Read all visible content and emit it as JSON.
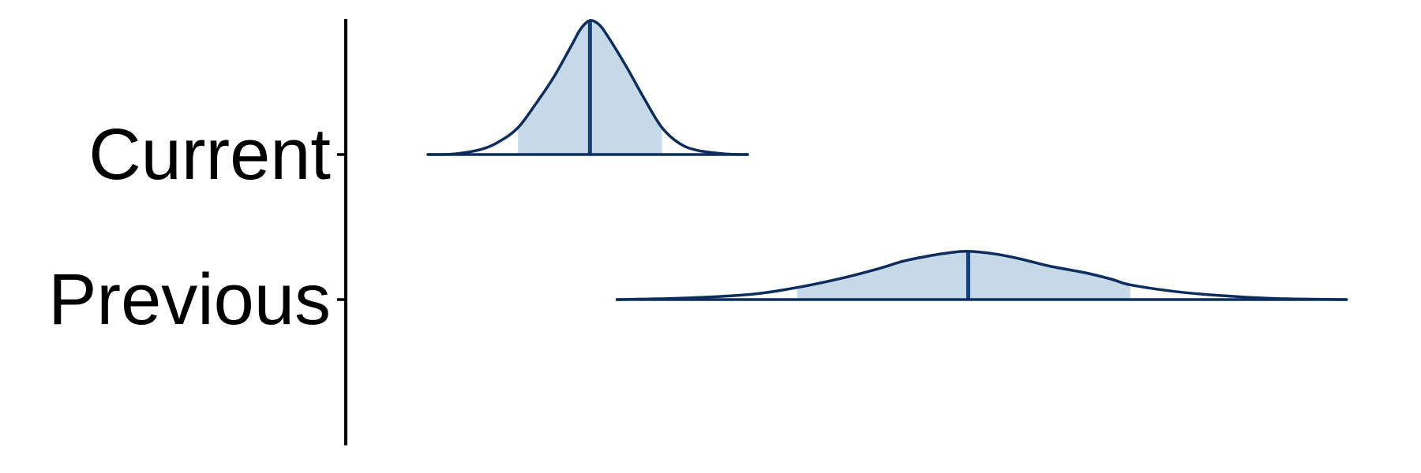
{
  "chart_data": {
    "type": "area",
    "subtype": "ridgeline",
    "title": "",
    "xlabel": "",
    "ylabel": "",
    "xlim": [
      -1.8,
      6.3
    ],
    "grid": false,
    "legend": "none",
    "categories": [
      "Current",
      "Previous"
    ],
    "series": [
      {
        "category": "Current",
        "median": 0.0,
        "interval": [
          -0.8,
          0.8
        ],
        "range": [
          -1.8,
          1.75
        ],
        "density": [
          [
            -1.8,
            0.0
          ],
          [
            -1.5,
            0.005
          ],
          [
            -1.2,
            0.04
          ],
          [
            -1.0,
            0.1
          ],
          [
            -0.8,
            0.2
          ],
          [
            -0.6,
            0.38
          ],
          [
            -0.4,
            0.58
          ],
          [
            -0.2,
            0.82
          ],
          [
            -0.1,
            0.94
          ],
          [
            0.0,
            1.0
          ],
          [
            0.1,
            0.97
          ],
          [
            0.2,
            0.88
          ],
          [
            0.4,
            0.66
          ],
          [
            0.6,
            0.42
          ],
          [
            0.8,
            0.2
          ],
          [
            1.0,
            0.08
          ],
          [
            1.2,
            0.03
          ],
          [
            1.5,
            0.005
          ],
          [
            1.75,
            0.0
          ]
        ]
      },
      {
        "category": "Previous",
        "median": 4.2,
        "interval": [
          2.3,
          6.0
        ],
        "range": [
          0.3,
          8.4
        ],
        "density": [
          [
            0.3,
            0.0
          ],
          [
            1.0,
            0.01
          ],
          [
            1.8,
            0.04
          ],
          [
            2.3,
            0.09
          ],
          [
            2.8,
            0.16
          ],
          [
            3.2,
            0.23
          ],
          [
            3.5,
            0.29
          ],
          [
            3.8,
            0.33
          ],
          [
            4.0,
            0.35
          ],
          [
            4.2,
            0.36
          ],
          [
            4.5,
            0.34
          ],
          [
            4.8,
            0.3
          ],
          [
            5.1,
            0.25
          ],
          [
            5.5,
            0.2
          ],
          [
            5.8,
            0.15
          ],
          [
            6.0,
            0.11
          ],
          [
            6.5,
            0.06
          ],
          [
            7.0,
            0.03
          ],
          [
            7.6,
            0.008
          ],
          [
            8.4,
            0.0
          ]
        ]
      }
    ],
    "colors": {
      "fill": "#c6d9e8",
      "line": "#0c2d5e",
      "median": "#123e7a",
      "axis": "#000000"
    }
  }
}
